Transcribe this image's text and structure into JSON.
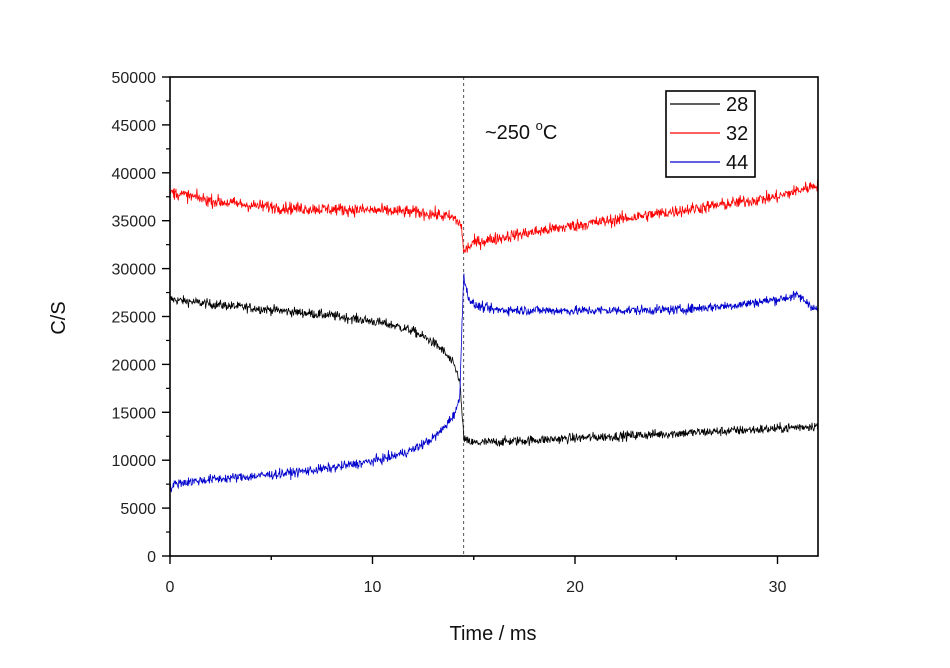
{
  "chart_data": {
    "type": "line",
    "xlabel": "Time /  ms",
    "ylabel": "C/S",
    "xlim": [
      0,
      32
    ],
    "ylim": [
      0,
      50000
    ],
    "x_ticks": [
      0,
      10,
      20,
      30
    ],
    "y_ticks": [
      0,
      5000,
      10000,
      15000,
      20000,
      25000,
      30000,
      35000,
      40000,
      45000,
      50000
    ],
    "grid": false,
    "legend_position": "top-right",
    "annotation": {
      "prefix": "~250 ",
      "superscript": "o",
      "suffix": "C"
    },
    "marker_line": {
      "x": 14.5,
      "style": "dashed"
    },
    "series": [
      {
        "name": "28",
        "color": "#000000",
        "noise": 500,
        "x": [
          0,
          2,
          4,
          6,
          8,
          10,
          11,
          12,
          13,
          13.5,
          14,
          14.3,
          14.5,
          14.6,
          15,
          17,
          20,
          25,
          30,
          32
        ],
        "values": [
          26800,
          26300,
          25900,
          25500,
          25100,
          24500,
          24100,
          23500,
          22300,
          21400,
          20000,
          18500,
          12500,
          12000,
          11800,
          12000,
          12300,
          12800,
          13300,
          13600
        ]
      },
      {
        "name": "32",
        "color": "#ff0000",
        "noise": 650,
        "x": [
          0,
          2,
          4,
          6,
          8,
          10,
          12,
          13,
          14,
          14.4,
          14.5,
          14.6,
          15,
          17,
          20,
          25,
          30,
          32
        ],
        "values": [
          38000,
          37100,
          36600,
          36300,
          36200,
          36100,
          35900,
          35700,
          35300,
          34500,
          31500,
          32000,
          32700,
          33500,
          34500,
          36000,
          37500,
          38800
        ]
      },
      {
        "name": "44",
        "color": "#0000cc",
        "noise": 500,
        "x": [
          0,
          0.3,
          2,
          4,
          6,
          8,
          10,
          11,
          12,
          13,
          13.5,
          14,
          14.3,
          14.5,
          14.6,
          14.8,
          15,
          16,
          20,
          25,
          28,
          30,
          31,
          32
        ],
        "values": [
          7000,
          7600,
          8000,
          8300,
          8700,
          9200,
          9900,
          10400,
          11100,
          12300,
          13300,
          14700,
          16200,
          29500,
          28000,
          26800,
          26200,
          25700,
          25600,
          25700,
          26200,
          26800,
          27200,
          25600
        ]
      }
    ]
  }
}
